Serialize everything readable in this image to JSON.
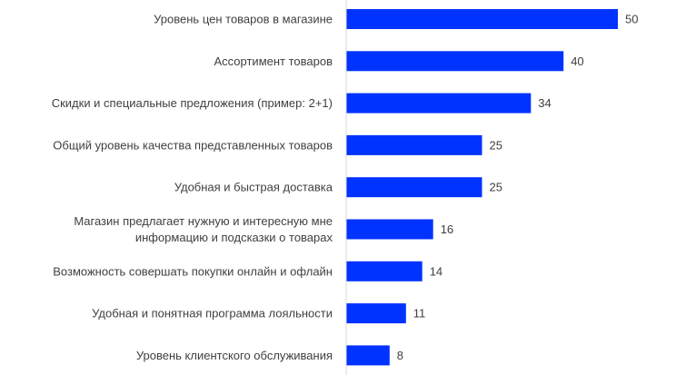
{
  "chart_data": {
    "type": "bar",
    "orientation": "horizontal",
    "title": "",
    "xlabel": "",
    "ylabel": "",
    "categories": [
      "Уровень цен товаров в магазине",
      "Ассортимент товаров",
      "Скидки и специальные предложения (пример: 2+1)",
      "Общий уровень качества представленных товаров",
      "Удобная и быстрая доставка",
      "Магазин предлагает нужную и интересную мне информацию и подсказки о товарах",
      "Возможность совершать покупки онлайн и офлайн",
      "Удобная и понятная программа лояльности",
      "Уровень клиентского обслуживания"
    ],
    "label_lines": [
      [
        "Уровень цен товаров в магазине"
      ],
      [
        "Ассортимент товаров"
      ],
      [
        "Скидки и специальные предложения (пример: 2+1)"
      ],
      [
        "Общий уровень качества представленных товаров"
      ],
      [
        "Удобная и быстрая доставка"
      ],
      [
        "Магазин предлагает нужную и интересную мне",
        "информацию и подсказки о товарах"
      ],
      [
        "Возможность совершать покупки онлайн и офлайн"
      ],
      [
        "Удобная и понятная программа лояльности"
      ],
      [
        "Уровень клиентского обслуживания"
      ]
    ],
    "values": [
      50,
      40,
      34,
      25,
      25,
      16,
      14,
      11,
      8
    ],
    "data_labels": [
      "50",
      "40",
      "34",
      "25",
      "25",
      "16",
      "14",
      "11",
      "8"
    ],
    "xlim": [
      0,
      50
    ],
    "bar_color": "#0033FF",
    "axis_color": "#D9D9D9",
    "grid": false,
    "legend": "none"
  }
}
